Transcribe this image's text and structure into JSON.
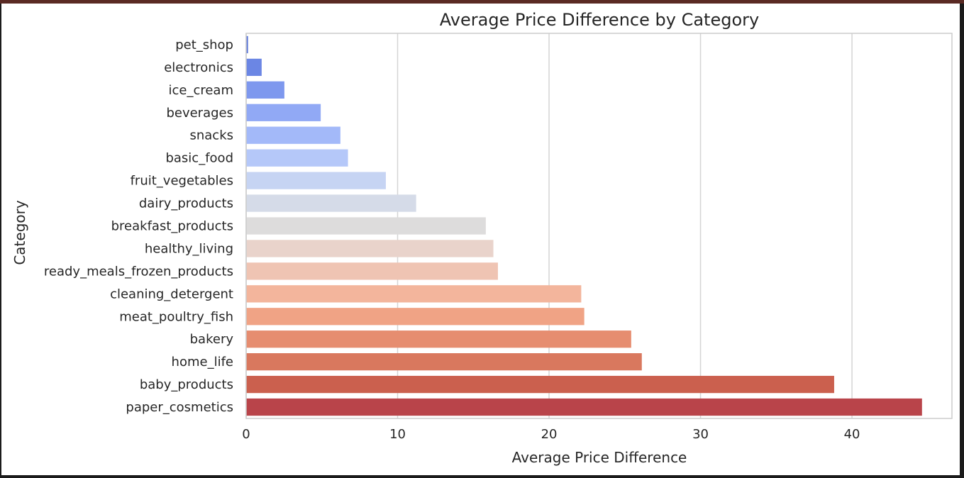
{
  "chart_data": {
    "type": "bar",
    "orientation": "horizontal",
    "title": "Average Price Difference by Category",
    "xlabel": "Average Price Difference",
    "ylabel": "Category",
    "xlim": [
      0,
      46.6
    ],
    "xticks": [
      0,
      10,
      20,
      30,
      40
    ],
    "grid": "vertical",
    "legend": "none",
    "palette": "coolwarm",
    "categories": [
      "pet_shop",
      "electronics",
      "ice_cream",
      "beverages",
      "snacks",
      "basic_food",
      "fruit_vegetables",
      "dairy_products",
      "breakfast_products",
      "healthy_living",
      "ready_meals_frozen_products",
      "cleaning_detergent",
      "meat_poultry_fish",
      "bakery",
      "home_life",
      "baby_products",
      "paper_cosmetics"
    ],
    "values": [
      0.1,
      1.0,
      2.5,
      4.9,
      6.2,
      6.7,
      9.2,
      11.2,
      15.8,
      16.3,
      16.6,
      22.1,
      22.3,
      25.4,
      26.1,
      38.8,
      44.6
    ],
    "colors": [
      "#5b76d8",
      "#6b86e4",
      "#7e98ee",
      "#91a9f5",
      "#a3b9f9",
      "#b5c8f9",
      "#c6d4f3",
      "#d5dbe8",
      "#dddcdc",
      "#e9d3cb",
      "#efc4b3",
      "#f3b59c",
      "#f0a385",
      "#e68d70",
      "#d9785e",
      "#cb604e",
      "#b9444a"
    ]
  }
}
